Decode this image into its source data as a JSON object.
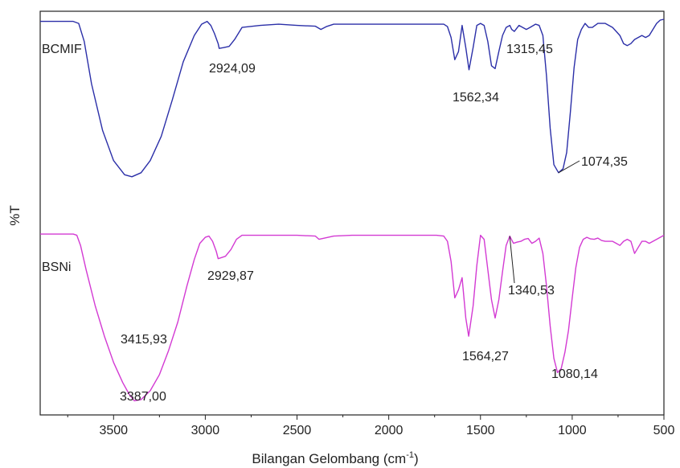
{
  "chart_data": {
    "type": "line",
    "title": "",
    "xlabel": "Bilangan Gelombang (cm",
    "xlabel_sup": "-1",
    "xlabel_suffix": ")",
    "ylabel": "%T",
    "xlim": [
      3900,
      500
    ],
    "x_reversed": true,
    "ylim": [
      0,
      100
    ],
    "grid": false,
    "x_ticks": [
      3500,
      3000,
      2500,
      2000,
      1500,
      1000,
      500
    ],
    "x_tick_labels": [
      "3500",
      "3000",
      "2500",
      "2000",
      "1500",
      "1000",
      "500"
    ],
    "y_ticks_shown": false,
    "series": [
      {
        "name": "BCMIF",
        "color": "#2b2fa8",
        "x": [
          3900,
          3800,
          3720,
          3690,
          3660,
          3620,
          3560,
          3500,
          3440,
          3400,
          3350,
          3300,
          3240,
          3180,
          3120,
          3060,
          3020,
          2990,
          2970,
          2950,
          2930,
          2924.09,
          2900,
          2870,
          2840,
          2800,
          2700,
          2600,
          2500,
          2400,
          2370,
          2340,
          2300,
          2200,
          2100,
          2000,
          1900,
          1800,
          1740,
          1700,
          1680,
          1660,
          1640,
          1620,
          1600,
          1580,
          1562.34,
          1540,
          1520,
          1500,
          1480,
          1460,
          1440,
          1420,
          1400,
          1380,
          1360,
          1340,
          1330,
          1315.45,
          1290,
          1270,
          1250,
          1230,
          1200,
          1180,
          1160,
          1140,
          1120,
          1100,
          1074.35,
          1050,
          1030,
          1010,
          990,
          970,
          950,
          930,
          910,
          890,
          860,
          820,
          780,
          760,
          740,
          720,
          700,
          680,
          660,
          640,
          620,
          600,
          580,
          560,
          540,
          520,
          500
        ],
        "values": [
          97.5,
          97.5,
          97.5,
          97.0,
          92.5,
          82.0,
          70.5,
          63.0,
          59.5,
          59.0,
          60.0,
          63.0,
          69.0,
          78.0,
          87.5,
          94.0,
          96.8,
          97.5,
          96.5,
          94.5,
          92.0,
          90.8,
          91.0,
          91.3,
          93.0,
          96.0,
          96.5,
          96.8,
          96.5,
          96.3,
          95.5,
          96.2,
          96.8,
          96.8,
          96.8,
          96.8,
          96.8,
          96.8,
          96.8,
          96.8,
          96.2,
          93.5,
          88.0,
          90.0,
          96.5,
          91.0,
          85.5,
          91.0,
          96.5,
          97.0,
          96.5,
          92.5,
          86.5,
          85.8,
          90.0,
          94.0,
          96.0,
          96.5,
          95.5,
          95.0,
          96.5,
          96.0,
          95.5,
          96.0,
          96.8,
          96.5,
          94.0,
          84.0,
          71.0,
          62.0,
          60.0,
          61.0,
          65.0,
          75.0,
          86.0,
          93.0,
          95.5,
          97.0,
          96.0,
          96.0,
          97.0,
          97.0,
          96.0,
          95.0,
          94.0,
          92.0,
          91.5,
          92.0,
          93.0,
          93.5,
          94.0,
          93.5,
          94.0,
          95.5,
          97.0,
          97.8,
          98.0
        ]
      },
      {
        "name": "BSNi",
        "color": "#d33ad3",
        "x": [
          3900,
          3800,
          3720,
          3700,
          3680,
          3650,
          3600,
          3550,
          3500,
          3450,
          3415.93,
          3387.0,
          3350,
          3300,
          3250,
          3200,
          3150,
          3100,
          3060,
          3030,
          3000,
          2980,
          2960,
          2940,
          2929.87,
          2910,
          2890,
          2860,
          2830,
          2800,
          2700,
          2600,
          2500,
          2400,
          2380,
          2350,
          2300,
          2200,
          2100,
          2000,
          1900,
          1800,
          1740,
          1700,
          1680,
          1660,
          1640,
          1620,
          1600,
          1580,
          1564.27,
          1540,
          1520,
          1500,
          1480,
          1460,
          1440,
          1420,
          1400,
          1380,
          1360,
          1340.53,
          1320,
          1300,
          1280,
          1260,
          1240,
          1220,
          1200,
          1180,
          1160,
          1140,
          1120,
          1100,
          1080.14,
          1060,
          1040,
          1020,
          1000,
          980,
          960,
          940,
          920,
          900,
          880,
          860,
          840,
          820,
          800,
          780,
          760,
          740,
          720,
          700,
          680,
          660,
          640,
          620,
          600,
          580,
          560,
          540,
          520,
          500
        ],
        "values": [
          44.8,
          44.8,
          44.8,
          44.5,
          42.0,
          36.0,
          27.0,
          19.5,
          13.0,
          8.0,
          5.2,
          3.5,
          3.8,
          6.0,
          10.0,
          16.0,
          23.0,
          32.0,
          38.5,
          42.5,
          44.0,
          44.3,
          43.0,
          40.5,
          38.7,
          39.0,
          39.3,
          41.0,
          43.5,
          44.5,
          44.5,
          44.5,
          44.5,
          44.3,
          43.5,
          43.8,
          44.3,
          44.5,
          44.5,
          44.5,
          44.5,
          44.5,
          44.5,
          44.3,
          43.0,
          38.0,
          29.0,
          31.0,
          34.0,
          24.0,
          19.5,
          27.0,
          37.0,
          44.5,
          43.5,
          36.0,
          28.5,
          24.0,
          28.5,
          35.5,
          42.0,
          44.3,
          42.5,
          42.8,
          43.0,
          43.5,
          43.7,
          42.5,
          43.0,
          43.8,
          40.0,
          32.0,
          22.0,
          14.0,
          10.5,
          11.5,
          15.5,
          21.0,
          29.0,
          36.5,
          41.5,
          43.5,
          44.0,
          43.6,
          43.5,
          43.8,
          43.2,
          43.0,
          43.0,
          43.0,
          42.5,
          42.0,
          43.0,
          43.5,
          43.0,
          40.0,
          41.5,
          43.0,
          43.0,
          42.5,
          43.0,
          43.5,
          44.0,
          44.5
        ]
      }
    ],
    "series_labels": [
      {
        "text": "BCMIF",
        "series": "BCMIF"
      },
      {
        "text": "BSNi",
        "series": "BSNi"
      }
    ],
    "annotations": [
      {
        "text": "2924,09",
        "x": 2924.09,
        "series": "BCMIF"
      },
      {
        "text": "1562,34",
        "x": 1562.34,
        "series": "BCMIF"
      },
      {
        "text": "1315,45",
        "x": 1315.45,
        "series": "BCMIF"
      },
      {
        "text": "1074,35",
        "x": 1074.35,
        "series": "BCMIF",
        "leader_line": true
      },
      {
        "text": "2929,87",
        "x": 2929.87,
        "series": "BSNi"
      },
      {
        "text": "3415,93",
        "x": 3415.93,
        "series": "BSNi"
      },
      {
        "text": "3387,00",
        "x": 3387.0,
        "series": "BSNi"
      },
      {
        "text": "1564,27",
        "x": 1564.27,
        "series": "BSNi"
      },
      {
        "text": "1340,53",
        "x": 1340.53,
        "series": "BSNi",
        "leader_line": true
      },
      {
        "text": "1080,14",
        "x": 1080.14,
        "series": "BSNi"
      }
    ]
  }
}
